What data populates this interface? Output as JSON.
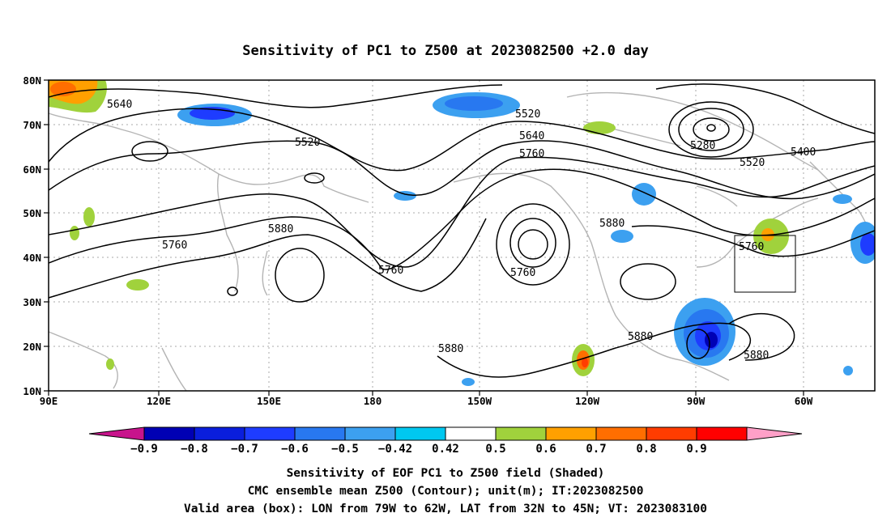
{
  "title": "Sensitivity of PC1 to Z500 at 2023082500 +2.0 day",
  "lon_ticks": [
    "90E",
    "120E",
    "150E",
    "180",
    "150W",
    "120W",
    "90W",
    "60W"
  ],
  "lat_ticks": [
    "80N",
    "70N",
    "60N",
    "50N",
    "40N",
    "30N",
    "20N",
    "10N"
  ],
  "contour_labels": [
    "5640",
    "5520",
    "5520",
    "5640",
    "5760",
    "5280",
    "5400",
    "5520",
    "5880",
    "5760",
    "5760",
    "5760",
    "5880",
    "5760",
    "5880",
    "5880",
    "5880"
  ],
  "colorbar": {
    "labels": [
      "-0.9",
      "-0.8",
      "-0.7",
      "-0.6",
      "-0.5",
      "-0.42",
      "0.42",
      "0.5",
      "0.6",
      "0.7",
      "0.8",
      "0.9"
    ],
    "colors": [
      "#c8148c",
      "#0000b4",
      "#0a1edc",
      "#1e3cff",
      "#2878f0",
      "#3ca0f0",
      "#00c8f0",
      "#ffffff",
      "#a0d23c",
      "#ffa000",
      "#ff6e00",
      "#ff3c00",
      "#ff0000",
      "#ffa0c8"
    ]
  },
  "valid_box": {
    "lon_west": "79W",
    "lon_east": "62W",
    "lat_south": "32N",
    "lat_north": "45N"
  },
  "footer": [
    "Sensitivity of EOF PC1 to Z500 field (Shaded)",
    "CMC ensemble mean Z500 (Contour); unit(m); IT:2023082500",
    "Valid area (box): LON from 79W to 62W, LAT from 32N to 45N; VT: 2023083100"
  ]
}
